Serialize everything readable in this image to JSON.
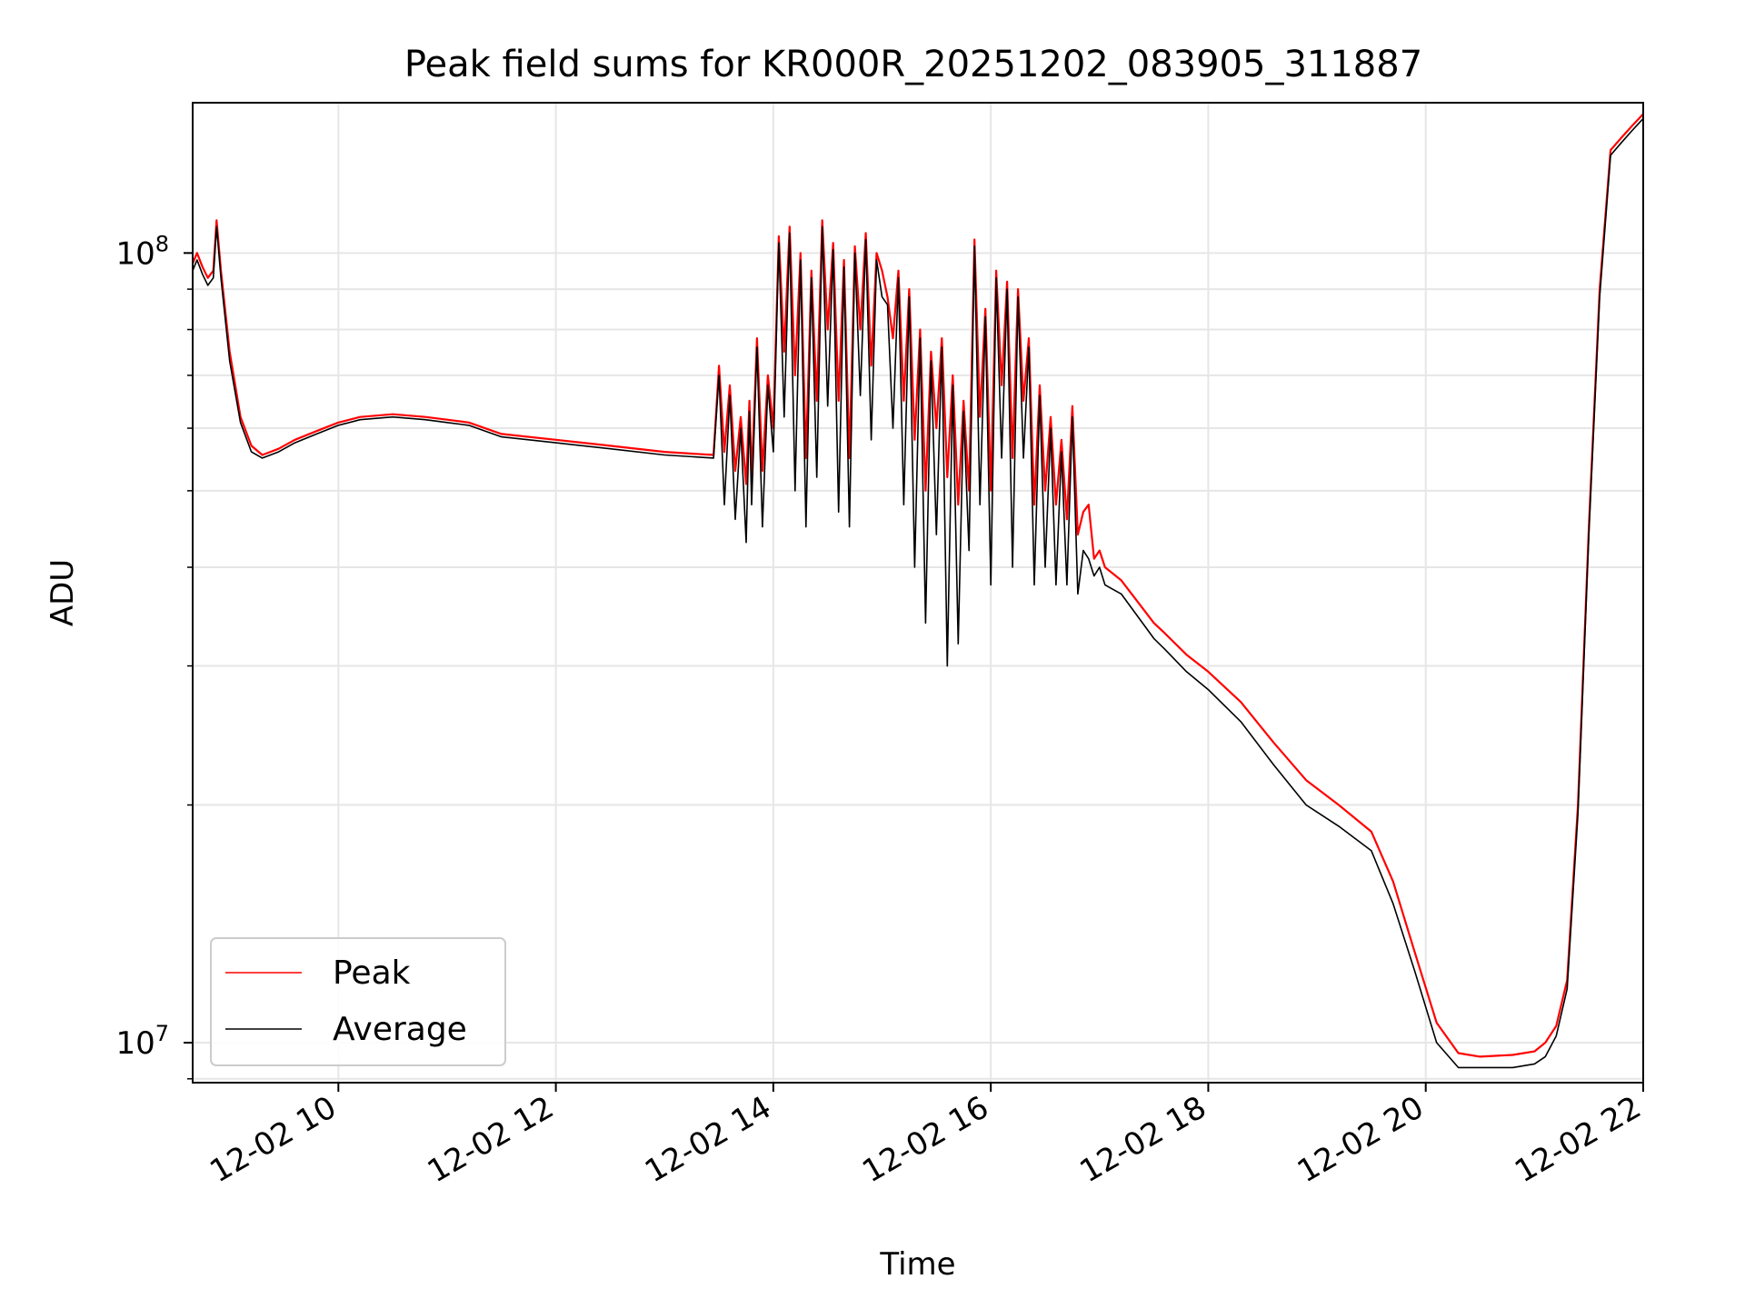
{
  "chart_data": {
    "type": "line",
    "title": "Peak field sums for KR000R_20251202_083905_311887",
    "xlabel": "Time",
    "ylabel": "ADU",
    "yscale": "log",
    "grid": true,
    "legend_position": "lower-left",
    "xlim_hours": [
      8.66,
      22.0
    ],
    "ylim": [
      8900000,
      155000000
    ],
    "x_ticks": [
      {
        "hour": 10,
        "label": "12-02 10"
      },
      {
        "hour": 12,
        "label": "12-02 12"
      },
      {
        "hour": 14,
        "label": "12-02 14"
      },
      {
        "hour": 16,
        "label": "12-02 16"
      },
      {
        "hour": 18,
        "label": "12-02 18"
      },
      {
        "hour": 20,
        "label": "12-02 20"
      },
      {
        "hour": 22,
        "label": "12-02 22"
      }
    ],
    "y_ticks_major": [
      {
        "value": 10000000,
        "base": "10",
        "exp": "7"
      },
      {
        "value": 100000000,
        "base": "10",
        "exp": "8"
      }
    ],
    "y_ticks_minor": [
      9000000,
      20000000,
      30000000,
      40000000,
      50000000,
      60000000,
      70000000,
      80000000,
      90000000
    ],
    "series": [
      {
        "name": "Peak",
        "color": "#ff0000",
        "x_hours": [
          8.66,
          8.7,
          8.75,
          8.8,
          8.85,
          8.88,
          8.92,
          9.0,
          9.1,
          9.2,
          9.3,
          9.45,
          9.6,
          9.8,
          10.0,
          10.2,
          10.5,
          10.8,
          11.0,
          11.2,
          11.5,
          12.0,
          12.5,
          13.0,
          13.45,
          13.5,
          13.55,
          13.6,
          13.65,
          13.7,
          13.75,
          13.78,
          13.8,
          13.85,
          13.9,
          13.95,
          14.0,
          14.05,
          14.1,
          14.15,
          14.2,
          14.25,
          14.3,
          14.35,
          14.4,
          14.45,
          14.5,
          14.55,
          14.6,
          14.65,
          14.7,
          14.75,
          14.8,
          14.85,
          14.9,
          14.95,
          15.0,
          15.05,
          15.1,
          15.15,
          15.2,
          15.25,
          15.3,
          15.35,
          15.4,
          15.45,
          15.5,
          15.55,
          15.6,
          15.65,
          15.7,
          15.75,
          15.8,
          15.85,
          15.9,
          15.95,
          16.0,
          16.05,
          16.1,
          16.15,
          16.2,
          16.25,
          16.3,
          16.35,
          16.4,
          16.45,
          16.5,
          16.55,
          16.6,
          16.65,
          16.7,
          16.75,
          16.8,
          16.85,
          16.9,
          16.95,
          17.0,
          17.05,
          17.2,
          17.5,
          17.6,
          17.8,
          18.0,
          18.3,
          18.6,
          18.9,
          19.2,
          19.5,
          19.7,
          19.9,
          20.1,
          20.3,
          20.5,
          20.8,
          21.0,
          21.1,
          21.2,
          21.3,
          21.4,
          21.5,
          21.6,
          21.7,
          21.8,
          21.9,
          22.0
        ],
        "values": [
          97000000,
          100000000,
          96000000,
          93000000,
          95000000,
          110000000,
          95000000,
          75000000,
          62000000,
          57000000,
          55500000,
          56500000,
          58000000,
          59500000,
          61000000,
          62000000,
          62500000,
          62000000,
          61500000,
          61000000,
          59000000,
          58000000,
          57000000,
          56000000,
          55500000,
          72000000,
          56000000,
          68000000,
          53000000,
          62000000,
          51000000,
          65000000,
          52000000,
          78000000,
          53000000,
          70000000,
          60000000,
          105000000,
          75000000,
          108000000,
          70000000,
          100000000,
          55000000,
          95000000,
          65000000,
          110000000,
          80000000,
          103000000,
          65000000,
          98000000,
          55000000,
          102000000,
          80000000,
          106000000,
          72000000,
          100000000,
          95000000,
          88000000,
          78000000,
          95000000,
          65000000,
          90000000,
          58000000,
          80000000,
          50000000,
          75000000,
          60000000,
          78000000,
          52000000,
          70000000,
          48000000,
          65000000,
          50000000,
          104000000,
          62000000,
          85000000,
          50000000,
          95000000,
          68000000,
          92000000,
          55000000,
          90000000,
          65000000,
          78000000,
          48000000,
          68000000,
          50000000,
          62000000,
          48000000,
          58000000,
          46000000,
          64000000,
          44000000,
          47000000,
          48000000,
          41000000,
          42000000,
          40000000,
          38500000,
          34000000,
          33000000,
          31000000,
          29500000,
          27000000,
          24000000,
          21500000,
          20000000,
          18500000,
          16000000,
          13000000,
          10600000,
          9700000,
          9600000,
          9650000,
          9750000,
          10000000,
          10500000,
          12000000,
          20000000,
          45000000,
          90000000,
          135000000,
          140000000,
          145000000,
          150000000
        ]
      },
      {
        "name": "Average",
        "color": "#000000",
        "x_hours": [
          8.66,
          8.7,
          8.75,
          8.8,
          8.85,
          8.88,
          8.92,
          9.0,
          9.1,
          9.2,
          9.3,
          9.45,
          9.6,
          9.8,
          10.0,
          10.2,
          10.5,
          10.8,
          11.0,
          11.2,
          11.5,
          12.0,
          12.5,
          13.0,
          13.45,
          13.5,
          13.55,
          13.6,
          13.65,
          13.7,
          13.75,
          13.78,
          13.8,
          13.85,
          13.9,
          13.95,
          14.0,
          14.05,
          14.1,
          14.15,
          14.2,
          14.25,
          14.3,
          14.35,
          14.4,
          14.45,
          14.5,
          14.55,
          14.6,
          14.65,
          14.7,
          14.75,
          14.8,
          14.85,
          14.9,
          14.95,
          15.0,
          15.05,
          15.1,
          15.15,
          15.2,
          15.25,
          15.3,
          15.35,
          15.4,
          15.45,
          15.5,
          15.55,
          15.6,
          15.65,
          15.7,
          15.75,
          15.8,
          15.85,
          15.9,
          15.95,
          16.0,
          16.05,
          16.1,
          16.15,
          16.2,
          16.25,
          16.3,
          16.35,
          16.4,
          16.45,
          16.5,
          16.55,
          16.6,
          16.65,
          16.7,
          16.75,
          16.8,
          16.85,
          16.9,
          16.95,
          17.0,
          17.05,
          17.2,
          17.5,
          17.6,
          17.8,
          18.0,
          18.3,
          18.6,
          18.9,
          19.2,
          19.5,
          19.7,
          19.9,
          20.1,
          20.3,
          20.5,
          20.8,
          21.0,
          21.1,
          21.2,
          21.3,
          21.4,
          21.5,
          21.6,
          21.7,
          21.8,
          21.9,
          22.0
        ],
        "values": [
          95000000,
          98000000,
          94000000,
          91000000,
          93000000,
          108000000,
          93000000,
          73000000,
          61000000,
          56000000,
          55000000,
          56000000,
          57500000,
          59000000,
          60500000,
          61500000,
          62000000,
          61500000,
          61000000,
          60500000,
          58500000,
          57500000,
          56500000,
          55500000,
          55000000,
          70000000,
          48000000,
          66000000,
          46000000,
          60000000,
          43000000,
          63000000,
          48000000,
          76000000,
          45000000,
          68000000,
          56000000,
          103000000,
          62000000,
          106000000,
          50000000,
          98000000,
          45000000,
          93000000,
          52000000,
          108000000,
          64000000,
          101000000,
          47000000,
          96000000,
          45000000,
          100000000,
          66000000,
          104000000,
          58000000,
          98000000,
          88000000,
          86000000,
          60000000,
          93000000,
          48000000,
          88000000,
          40000000,
          78000000,
          34000000,
          73000000,
          44000000,
          76000000,
          30000000,
          68000000,
          32000000,
          63000000,
          42000000,
          102000000,
          48000000,
          83000000,
          38000000,
          93000000,
          55000000,
          90000000,
          40000000,
          88000000,
          55000000,
          76000000,
          38000000,
          66000000,
          40000000,
          60000000,
          38000000,
          56000000,
          38000000,
          62000000,
          37000000,
          42000000,
          41000000,
          39000000,
          40000000,
          38000000,
          37000000,
          32500000,
          31500000,
          29500000,
          28000000,
          25500000,
          22500000,
          20000000,
          18800000,
          17500000,
          15000000,
          12300000,
          10000000,
          9300000,
          9300000,
          9300000,
          9400000,
          9600000,
          10200000,
          11700000,
          19500000,
          44000000,
          88000000,
          133000000,
          138000000,
          143000000,
          148000000
        ]
      }
    ],
    "legend": [
      {
        "label": "Peak",
        "color": "#ff0000"
      },
      {
        "label": "Average",
        "color": "#000000"
      }
    ]
  }
}
